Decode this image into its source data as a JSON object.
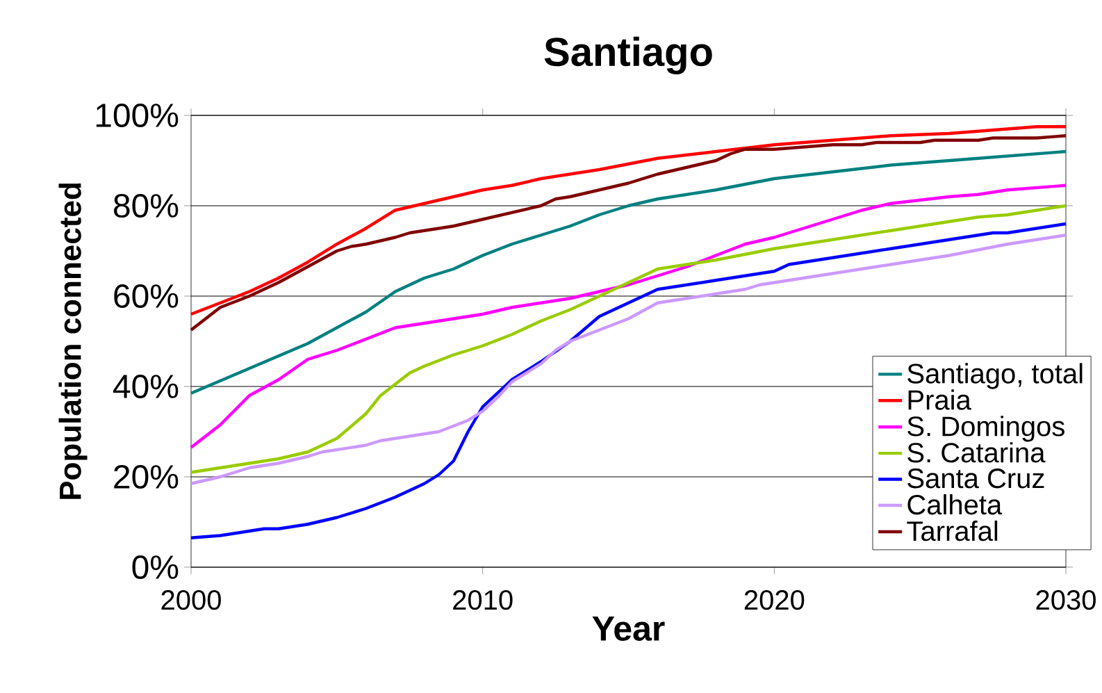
{
  "chart_data": {
    "type": "line",
    "title": "Santiago",
    "xlabel": "Year",
    "ylabel": "Population connected",
    "xlim": [
      2000,
      2030
    ],
    "xticks": [
      2000,
      2010,
      2020,
      2030
    ],
    "ylim": [
      0,
      100
    ],
    "yticks": [
      {
        "value": 0,
        "label": "0%"
      },
      {
        "value": 20,
        "label": "20%"
      },
      {
        "value": 40,
        "label": "40%"
      },
      {
        "value": 60,
        "label": "60%"
      },
      {
        "value": 80,
        "label": "80%"
      },
      {
        "value": 100,
        "label": "100%"
      }
    ],
    "grid": "y",
    "legend": "bottom right",
    "marker": "none",
    "line_style": "solid",
    "series": [
      {
        "name": "Santiago, total",
        "color": "#008080",
        "x": [
          2000,
          2002,
          2004,
          2006,
          2007,
          2008,
          2009,
          2010,
          2011,
          2012,
          2013,
          2014,
          2015,
          2016,
          2018,
          2020,
          2022,
          2024,
          2026,
          2027,
          2028,
          2030
        ],
        "values": [
          38.5,
          44,
          49.5,
          56.5,
          61,
          64,
          66,
          69,
          71.5,
          73.5,
          75.5,
          78,
          80,
          81.5,
          83.5,
          86,
          87.5,
          89,
          90,
          90.5,
          91,
          92
        ]
      },
      {
        "name": "Praia",
        "color": "#ff0000",
        "x": [
          2000,
          2001,
          2002,
          2003,
          2004,
          2005,
          2006,
          2007,
          2008,
          2009,
          2010,
          2011,
          2012,
          2014,
          2016,
          2018,
          2020,
          2022,
          2024,
          2026,
          2027,
          2029,
          2030
        ],
        "values": [
          56,
          58.5,
          61,
          64,
          67.5,
          71.5,
          75,
          79,
          80.5,
          82,
          83.5,
          84.5,
          86,
          88,
          90.5,
          92,
          93.5,
          94.5,
          95.5,
          96,
          96.5,
          97.5,
          97.5
        ]
      },
      {
        "name": "S. Domingos",
        "color": "#ff00ff",
        "x": [
          2000,
          2001,
          2002,
          2003,
          2004,
          2005,
          2006,
          2007,
          2008,
          2009,
          2010,
          2011,
          2012,
          2013,
          2014,
          2015,
          2016,
          2017,
          2018,
          2019,
          2020,
          2022,
          2023,
          2024,
          2026,
          2027,
          2028,
          2030
        ],
        "values": [
          26.5,
          31.5,
          38,
          41.5,
          46,
          48,
          50.5,
          53,
          54,
          55,
          56,
          57.5,
          58.5,
          59.5,
          61,
          62.5,
          64.5,
          66.5,
          69,
          71.5,
          73,
          77,
          79,
          80.5,
          82,
          82.5,
          83.5,
          84.5
        ]
      },
      {
        "name": "S. Catarina",
        "color": "#99cc00",
        "x": [
          2000,
          2002,
          2003,
          2004,
          2005,
          2006,
          2006.5,
          2007,
          2007.5,
          2008,
          2009,
          2010,
          2011,
          2012,
          2013,
          2014,
          2015,
          2016,
          2017,
          2018,
          2020,
          2022,
          2024,
          2026,
          2027,
          2028,
          2030
        ],
        "values": [
          21,
          23,
          24,
          25.5,
          28.5,
          34,
          38,
          40.5,
          43,
          44.5,
          47,
          49,
          51.5,
          54.5,
          57,
          60,
          63,
          66,
          67,
          68,
          70.5,
          72.5,
          74.5,
          76.5,
          77.5,
          78,
          80
        ]
      },
      {
        "name": "Santa Cruz",
        "color": "#0000ff",
        "x": [
          2000,
          2001,
          2002,
          2002.5,
          2003,
          2004,
          2005,
          2006,
          2007,
          2008,
          2008.5,
          2009,
          2009.5,
          2010,
          2011,
          2012,
          2013,
          2014,
          2015,
          2016,
          2018,
          2020,
          2020.5,
          2022,
          2024,
          2026,
          2027.5,
          2028,
          2030
        ],
        "values": [
          6.5,
          7,
          8,
          8.5,
          8.5,
          9.5,
          11,
          13,
          15.5,
          18.5,
          20.5,
          23.5,
          30,
          35.5,
          41.5,
          45.5,
          50,
          55.5,
          58.5,
          61.5,
          63.5,
          65.5,
          67,
          68.5,
          70.5,
          72.5,
          74,
          74,
          76
        ]
      },
      {
        "name": "Calheta",
        "color": "#cc99ff",
        "x": [
          2000,
          2001,
          2002,
          2003,
          2004,
          2004.5,
          2006,
          2006.5,
          2008,
          2008.5,
          2009.5,
          2010,
          2010.5,
          2011,
          2012,
          2012.5,
          2013,
          2014,
          2015,
          2016,
          2018,
          2019,
          2019.5,
          2022,
          2024,
          2026,
          2028,
          2030
        ],
        "values": [
          18.5,
          20,
          22,
          23,
          24.5,
          25.5,
          27,
          28,
          29.5,
          30,
          32.5,
          34.5,
          37.5,
          41,
          45,
          48,
          50,
          52.5,
          55,
          58.5,
          60.5,
          61.5,
          62.5,
          65,
          67,
          69,
          71.5,
          73.5
        ]
      },
      {
        "name": "Tarrafal",
        "color": "#800000",
        "x": [
          2000,
          2001,
          2002,
          2003,
          2004,
          2005,
          2005.5,
          2006,
          2007,
          2007.5,
          2009,
          2010,
          2011,
          2012,
          2012.5,
          2013,
          2014,
          2015,
          2016,
          2017,
          2018,
          2018.5,
          2019,
          2020,
          2022,
          2023,
          2023.5,
          2025,
          2025.5,
          2027,
          2027.5,
          2029,
          2030
        ],
        "values": [
          52.5,
          57.5,
          60,
          63,
          66.5,
          70,
          71,
          71.5,
          73,
          74,
          75.5,
          77,
          78.5,
          80,
          81.5,
          82,
          83.5,
          85,
          87,
          88.5,
          90,
          91.5,
          92.5,
          92.5,
          93.5,
          93.5,
          94,
          94,
          94.5,
          94.5,
          95,
          95,
          95.5
        ]
      }
    ]
  }
}
